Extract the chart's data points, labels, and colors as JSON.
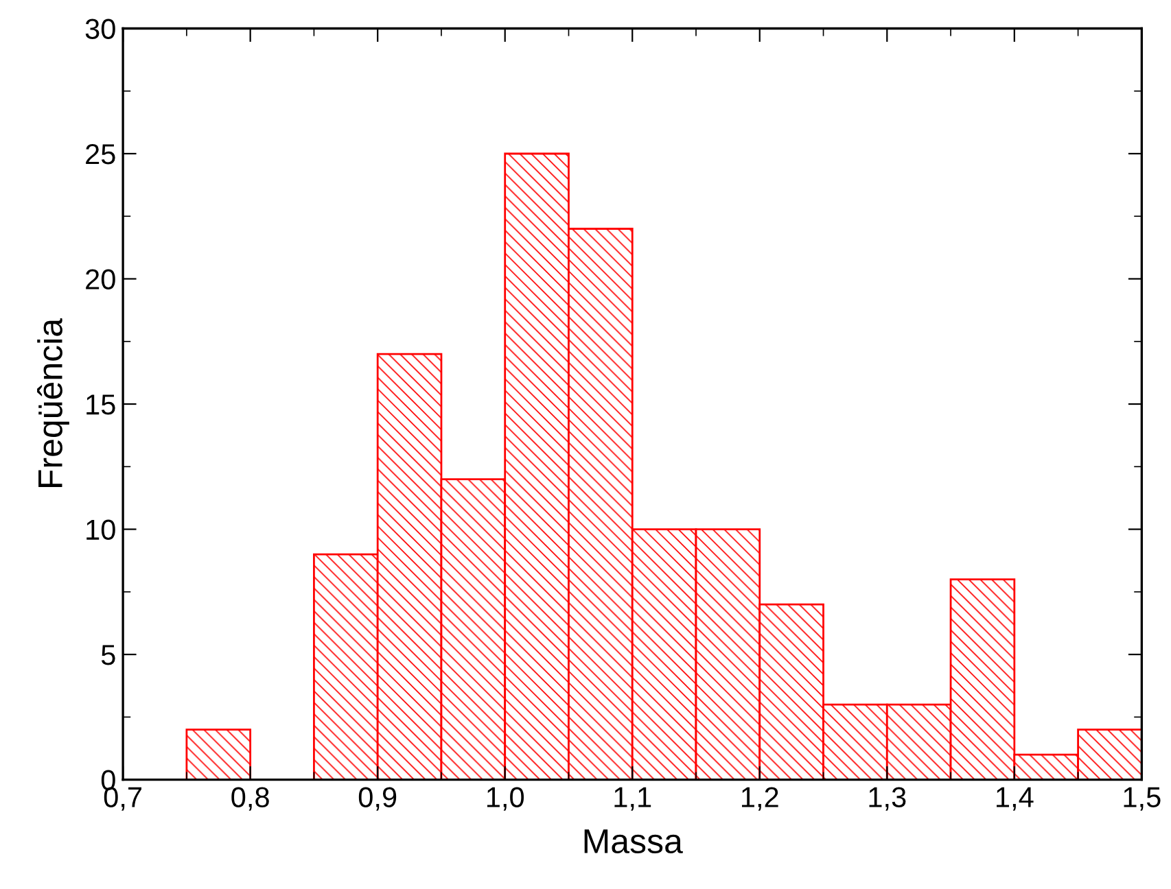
{
  "chart_data": {
    "type": "histogram",
    "xlabel": "Massa",
    "ylabel": "Freqüência",
    "color": "#ff0000",
    "bins": [
      0.75,
      0.8,
      0.85,
      0.9,
      0.95,
      1.0,
      1.05,
      1.1,
      1.15,
      1.2,
      1.25,
      1.3,
      1.35,
      1.4,
      1.45,
      1.5
    ],
    "values": [
      2,
      0,
      9,
      17,
      12,
      25,
      22,
      10,
      10,
      7,
      3,
      3,
      8,
      1,
      2
    ],
    "xlim": [
      0.7,
      1.5
    ],
    "xticks": [
      {
        "value": 0.7,
        "label": "0,7"
      },
      {
        "value": 0.8,
        "label": "0,8"
      },
      {
        "value": 0.9,
        "label": "0,9"
      },
      {
        "value": 1.0,
        "label": "1,0"
      },
      {
        "value": 1.1,
        "label": "1,1"
      },
      {
        "value": 1.2,
        "label": "1,2"
      },
      {
        "value": 1.3,
        "label": "1,3"
      },
      {
        "value": 1.4,
        "label": "1,4"
      },
      {
        "value": 1.5,
        "label": "1,5"
      }
    ],
    "ylim": [
      0,
      30
    ],
    "yticks": [
      0,
      5,
      10,
      15,
      20,
      25,
      30
    ],
    "grid": false
  }
}
